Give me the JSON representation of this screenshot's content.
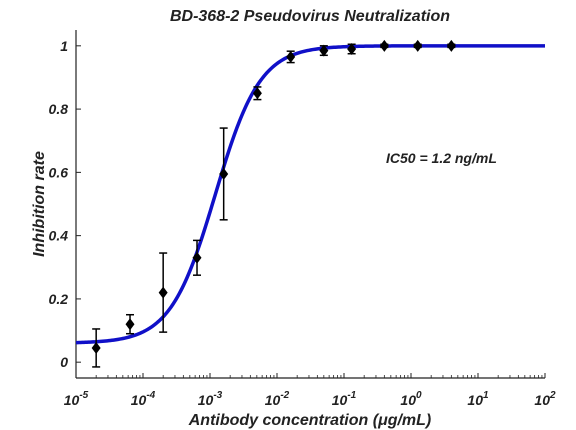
{
  "colors": {
    "curve": "#1010c8",
    "point": "#000000",
    "axis": "#222222"
  },
  "chart_data": {
    "type": "scatter",
    "title": "BD-368-2 Pseudovirus Neutralization",
    "xlabel": "Antibody concentration (μg/mL)",
    "ylabel": "Inhibition rate",
    "x_scale": "log",
    "xlim": [
      1e-05,
      100
    ],
    "ylim": [
      -0.05,
      1.05
    ],
    "grid": false,
    "x_ticks": [
      {
        "base": "10",
        "exp": "-5",
        "value": 1e-05
      },
      {
        "base": "10",
        "exp": "-4",
        "value": 0.0001
      },
      {
        "base": "10",
        "exp": "-3",
        "value": 0.001
      },
      {
        "base": "10",
        "exp": "-2",
        "value": 0.01
      },
      {
        "base": "10",
        "exp": "-1",
        "value": 0.1
      },
      {
        "base": "10",
        "exp": "0",
        "value": 1
      },
      {
        "base": "10",
        "exp": "1",
        "value": 10
      },
      {
        "base": "10",
        "exp": "2",
        "value": 100
      }
    ],
    "y_ticks": [
      {
        "label": "0",
        "value": 0
      },
      {
        "label": "0.2",
        "value": 0.2
      },
      {
        "label": "0.4",
        "value": 0.4
      },
      {
        "label": "0.6",
        "value": 0.6
      },
      {
        "label": "0.8",
        "value": 0.8
      },
      {
        "label": "1",
        "value": 1
      }
    ],
    "annotation": "IC50 = 1.2 ng/mL",
    "points": [
      {
        "x": 2e-05,
        "y": 0.045,
        "err": 0.06
      },
      {
        "x": 6.4e-05,
        "y": 0.12,
        "err": 0.03
      },
      {
        "x": 0.0002,
        "y": 0.22,
        "err": 0.125
      },
      {
        "x": 0.00064,
        "y": 0.33,
        "err": 0.055
      },
      {
        "x": 0.0016,
        "y": 0.595,
        "err": 0.145
      },
      {
        "x": 0.0051,
        "y": 0.85,
        "err": 0.02
      },
      {
        "x": 0.016,
        "y": 0.965,
        "err": 0.018
      },
      {
        "x": 0.05,
        "y": 0.985,
        "err": 0.015
      },
      {
        "x": 0.13,
        "y": 0.99,
        "err": 0.015
      },
      {
        "x": 0.4,
        "y": 1.0,
        "err": 0.005
      },
      {
        "x": 1.26,
        "y": 1.0,
        "err": 0.005
      },
      {
        "x": 4.0,
        "y": 1.0,
        "err": 0.005
      }
    ],
    "curve": {
      "model": "4PL",
      "bottom": 0.06,
      "top": 1.0,
      "ic50": 0.0012,
      "hill": 1.3
    }
  }
}
